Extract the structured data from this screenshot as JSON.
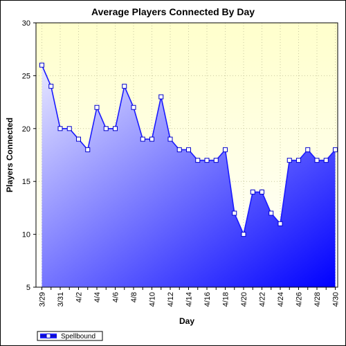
{
  "chart_data": {
    "type": "area",
    "title": "Average Players Connected By Day",
    "xlabel": "Day",
    "ylabel": "Players Connected",
    "ylim": [
      5,
      30
    ],
    "yticks": [
      5,
      10,
      15,
      20,
      25,
      30
    ],
    "x": [
      "3/29",
      "3/30",
      "3/31",
      "4/1",
      "4/2",
      "4/3",
      "4/4",
      "4/5",
      "4/6",
      "4/7",
      "4/8",
      "4/9",
      "4/10",
      "4/11",
      "4/12",
      "4/13",
      "4/14",
      "4/15",
      "4/16",
      "4/17",
      "4/18",
      "4/19",
      "4/20",
      "4/21",
      "4/22",
      "4/23",
      "4/24",
      "4/25",
      "4/26",
      "4/27",
      "4/28",
      "4/29",
      "4/30"
    ],
    "xtick_labels": [
      "3/29",
      "3/31",
      "4/2",
      "4/4",
      "4/6",
      "4/8",
      "4/10",
      "4/12",
      "4/14",
      "4/16",
      "4/18",
      "4/20",
      "4/22",
      "4/24",
      "4/26",
      "4/28",
      "4/30"
    ],
    "series": [
      {
        "name": "Spellbound",
        "values": [
          26,
          24,
          20,
          20,
          19,
          18,
          22,
          20,
          20,
          24,
          22,
          19,
          19,
          23,
          19,
          18,
          18,
          17,
          17,
          17,
          18,
          12,
          10,
          14,
          14,
          12,
          11,
          17,
          17,
          18,
          17,
          17,
          18
        ]
      }
    ],
    "colors": {
      "plot_background_top": "#ffffcc",
      "area_top": "#e8e8ff",
      "area_bottom": "#0000ff",
      "line": "#1a1aff",
      "marker_fill": "#ffffff",
      "marker_stroke": "#0000cc"
    },
    "grid": true,
    "legend": "bottom-left"
  }
}
